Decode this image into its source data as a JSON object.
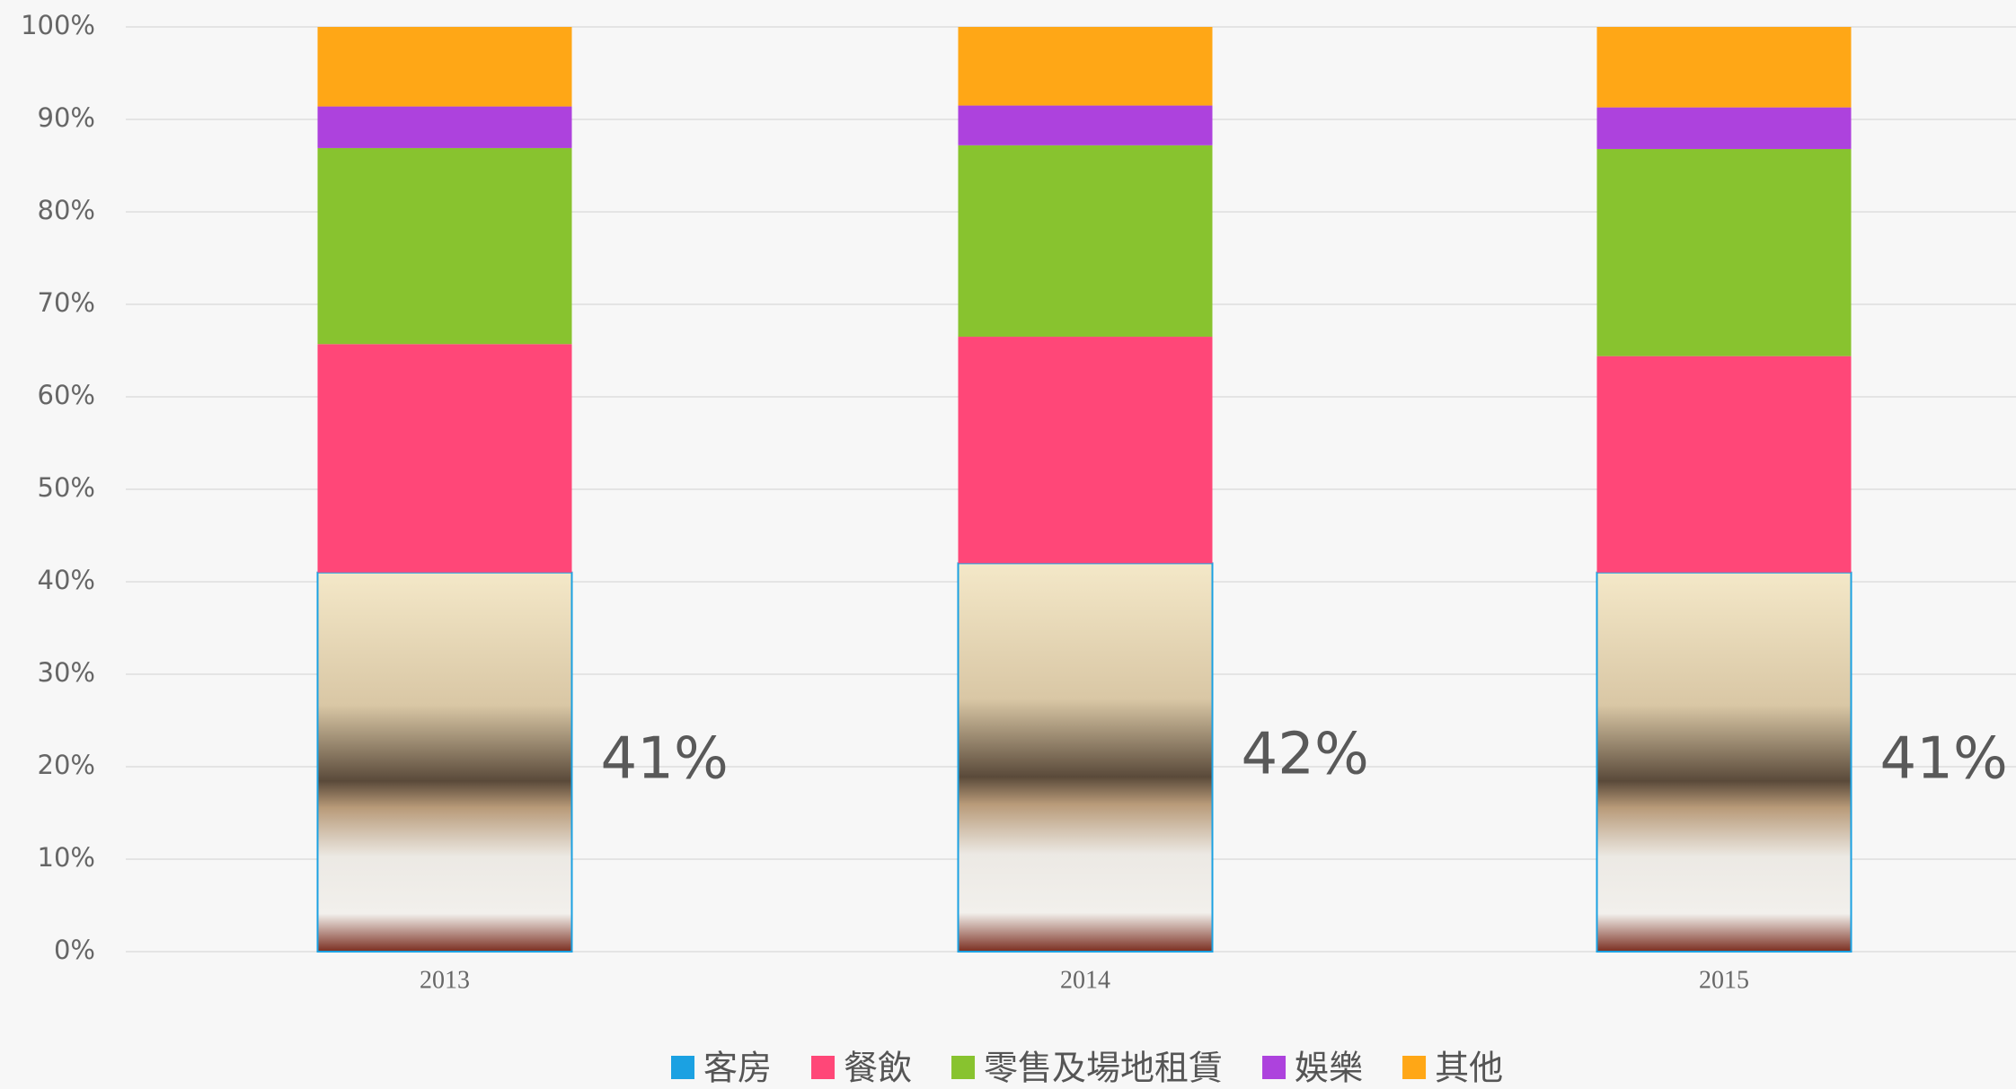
{
  "chart_data": {
    "type": "stacked_bar_percent",
    "categories": [
      "2013",
      "2014",
      "2015"
    ],
    "series": [
      {
        "name": "客房",
        "color": "#1ba1e2",
        "values": [
          41,
          42,
          41
        ],
        "value_labels": [
          "41%",
          "42%",
          "41%"
        ]
      },
      {
        "name": "餐飲",
        "color": "#ff4778",
        "values": [
          24.7,
          24.5,
          23.4
        ]
      },
      {
        "name": "零售及場地租賃",
        "color": "#88c32f",
        "values": [
          21.2,
          20.7,
          22.4
        ]
      },
      {
        "name": "娛樂",
        "color": "#ad42dd",
        "values": [
          4.5,
          4.3,
          4.5
        ]
      },
      {
        "name": "其他",
        "color": "#ffa716",
        "values": [
          8.6,
          8.5,
          8.7
        ]
      }
    ],
    "ylim": [
      0,
      100
    ],
    "yticks": [
      {
        "value": 0,
        "label": "0%"
      },
      {
        "value": 10,
        "label": "10%"
      },
      {
        "value": 20,
        "label": "20%"
      },
      {
        "value": 30,
        "label": "30%"
      },
      {
        "value": 40,
        "label": "40%"
      },
      {
        "value": 50,
        "label": "50%"
      },
      {
        "value": 60,
        "label": "60%"
      },
      {
        "value": 70,
        "label": "70%"
      },
      {
        "value": 80,
        "label": "80%"
      },
      {
        "value": 90,
        "label": "90%"
      },
      {
        "value": 100,
        "label": "100%"
      }
    ],
    "grid": true,
    "legend": "bottom"
  }
}
